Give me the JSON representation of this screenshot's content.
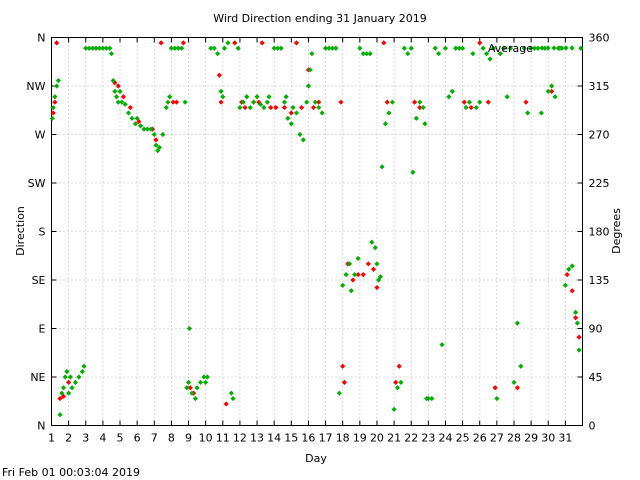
{
  "chart_data": {
    "type": "scatter",
    "title": "Wird Direction ending 31 January 2019",
    "xlabel": "Day",
    "ylabel_left": "Direction",
    "ylabel_right": "Degrees",
    "timestamp": "Fri Feb 01 00:03:04 2019",
    "xlim": [
      1,
      32
    ],
    "ylim": [
      0,
      360
    ],
    "x_ticks": [
      1,
      2,
      3,
      4,
      5,
      6,
      7,
      8,
      9,
      10,
      11,
      12,
      13,
      14,
      15,
      16,
      17,
      18,
      19,
      20,
      21,
      22,
      23,
      24,
      25,
      26,
      27,
      28,
      29,
      30,
      31
    ],
    "y_ticks_left": [
      {
        "label": "N",
        "value": 0
      },
      {
        "label": "NE",
        "value": 45
      },
      {
        "label": "E",
        "value": 90
      },
      {
        "label": "SE",
        "value": 135
      },
      {
        "label": "S",
        "value": 180
      },
      {
        "label": "SW",
        "value": 225
      },
      {
        "label": "W",
        "value": 270
      },
      {
        "label": "NW",
        "value": 315
      },
      {
        "label": "N",
        "value": 360
      }
    ],
    "y_ticks_right": [
      0,
      45,
      90,
      135,
      180,
      225,
      270,
      315,
      360
    ],
    "grid": true,
    "legend_position": "top-right",
    "colors": {
      "series_1": "#ff0000",
      "series_2": "#00b000",
      "grid": "#a0a0a0"
    },
    "series": [
      {
        "name": "",
        "marker": "diamond",
        "color": "#ff0000",
        "points": [
          [
            1.1,
            290
          ],
          [
            1.2,
            300
          ],
          [
            1.3,
            355
          ],
          [
            1.5,
            25
          ],
          [
            1.7,
            27
          ],
          [
            2.0,
            40
          ],
          [
            4.7,
            318
          ],
          [
            4.9,
            315
          ],
          [
            5.2,
            305
          ],
          [
            5.6,
            295
          ],
          [
            6.1,
            282
          ],
          [
            6.9,
            275
          ],
          [
            7.1,
            265
          ],
          [
            7.4,
            355
          ],
          [
            8.1,
            300
          ],
          [
            8.3,
            300
          ],
          [
            8.7,
            355
          ],
          [
            9.1,
            35
          ],
          [
            9.3,
            30
          ],
          [
            10.8,
            325
          ],
          [
            10.9,
            300
          ],
          [
            11.2,
            20
          ],
          [
            11.7,
            355
          ],
          [
            12.1,
            300
          ],
          [
            12.3,
            295
          ],
          [
            12.8,
            300
          ],
          [
            13.1,
            300
          ],
          [
            13.3,
            355
          ],
          [
            13.8,
            295
          ],
          [
            14.1,
            295
          ],
          [
            14.6,
            295
          ],
          [
            15.0,
            290
          ],
          [
            15.3,
            355
          ],
          [
            15.6,
            295
          ],
          [
            16.0,
            330
          ],
          [
            16.3,
            295
          ],
          [
            16.6,
            300
          ],
          [
            17.9,
            300
          ],
          [
            18.0,
            55
          ],
          [
            18.1,
            40
          ],
          [
            18.3,
            150
          ],
          [
            18.6,
            135
          ],
          [
            18.9,
            140
          ],
          [
            19.2,
            140
          ],
          [
            19.5,
            150
          ],
          [
            19.8,
            145
          ],
          [
            20.0,
            128
          ],
          [
            20.4,
            355
          ],
          [
            20.6,
            300
          ],
          [
            21.1,
            40
          ],
          [
            21.3,
            55
          ],
          [
            22.2,
            300
          ],
          [
            22.5,
            295
          ],
          [
            25.1,
            300
          ],
          [
            25.5,
            295
          ],
          [
            26.0,
            355
          ],
          [
            26.5,
            300
          ],
          [
            26.9,
            35
          ],
          [
            27.2,
            345
          ],
          [
            28.2,
            35
          ],
          [
            28.7,
            300
          ],
          [
            30.2,
            310
          ],
          [
            30.6,
            350
          ],
          [
            31.1,
            140
          ],
          [
            31.4,
            125
          ],
          [
            31.6,
            100
          ],
          [
            31.8,
            82
          ]
        ]
      },
      {
        "name": "Average",
        "marker": "diamond",
        "color": "#00b000",
        "points": [
          [
            1.05,
            285
          ],
          [
            1.1,
            295
          ],
          [
            1.2,
            305
          ],
          [
            1.3,
            315
          ],
          [
            1.4,
            320
          ],
          [
            1.5,
            10
          ],
          [
            1.6,
            30
          ],
          [
            1.7,
            35
          ],
          [
            1.8,
            45
          ],
          [
            1.9,
            50
          ],
          [
            2.0,
            30
          ],
          [
            2.1,
            45
          ],
          [
            2.2,
            35
          ],
          [
            2.4,
            40
          ],
          [
            2.6,
            45
          ],
          [
            2.8,
            50
          ],
          [
            2.9,
            55
          ],
          [
            3.0,
            350
          ],
          [
            3.2,
            350
          ],
          [
            3.4,
            350
          ],
          [
            3.6,
            350
          ],
          [
            3.8,
            350
          ],
          [
            4.0,
            350
          ],
          [
            4.2,
            350
          ],
          [
            4.4,
            350
          ],
          [
            4.5,
            345
          ],
          [
            4.6,
            320
          ],
          [
            4.7,
            310
          ],
          [
            4.8,
            305
          ],
          [
            4.9,
            300
          ],
          [
            5.0,
            310
          ],
          [
            5.1,
            300
          ],
          [
            5.3,
            298
          ],
          [
            5.5,
            290
          ],
          [
            5.7,
            285
          ],
          [
            5.9,
            280
          ],
          [
            6.0,
            285
          ],
          [
            6.2,
            278
          ],
          [
            6.4,
            275
          ],
          [
            6.6,
            275
          ],
          [
            6.8,
            275
          ],
          [
            7.0,
            270
          ],
          [
            7.1,
            260
          ],
          [
            7.2,
            255
          ],
          [
            7.3,
            258
          ],
          [
            7.5,
            270
          ],
          [
            7.7,
            295
          ],
          [
            7.8,
            300
          ],
          [
            7.9,
            305
          ],
          [
            8.0,
            350
          ],
          [
            8.2,
            350
          ],
          [
            8.4,
            350
          ],
          [
            8.6,
            350
          ],
          [
            8.8,
            300
          ],
          [
            8.9,
            35
          ],
          [
            9.0,
            40
          ],
          [
            9.05,
            90
          ],
          [
            9.2,
            30
          ],
          [
            9.4,
            25
          ],
          [
            9.5,
            35
          ],
          [
            9.7,
            40
          ],
          [
            9.9,
            45
          ],
          [
            10.0,
            40
          ],
          [
            10.1,
            45
          ],
          [
            10.3,
            350
          ],
          [
            10.5,
            350
          ],
          [
            10.7,
            345
          ],
          [
            10.9,
            310
          ],
          [
            11.0,
            305
          ],
          [
            11.1,
            350
          ],
          [
            11.3,
            355
          ],
          [
            11.5,
            30
          ],
          [
            11.6,
            25
          ],
          [
            11.9,
            350
          ],
          [
            12.0,
            295
          ],
          [
            12.2,
            300
          ],
          [
            12.4,
            305
          ],
          [
            12.6,
            295
          ],
          [
            12.8,
            300
          ],
          [
            13.0,
            305
          ],
          [
            13.2,
            298
          ],
          [
            13.4,
            295
          ],
          [
            13.6,
            300
          ],
          [
            13.7,
            305
          ],
          [
            14.0,
            350
          ],
          [
            14.2,
            350
          ],
          [
            14.4,
            350
          ],
          [
            14.6,
            300
          ],
          [
            14.7,
            305
          ],
          [
            14.8,
            285
          ],
          [
            15.0,
            280
          ],
          [
            15.1,
            295
          ],
          [
            15.3,
            290
          ],
          [
            15.5,
            270
          ],
          [
            15.7,
            265
          ],
          [
            15.9,
            300
          ],
          [
            16.0,
            315
          ],
          [
            16.1,
            330
          ],
          [
            16.2,
            345
          ],
          [
            16.4,
            300
          ],
          [
            16.6,
            295
          ],
          [
            16.8,
            290
          ],
          [
            17.0,
            350
          ],
          [
            17.2,
            350
          ],
          [
            17.4,
            350
          ],
          [
            17.6,
            350
          ],
          [
            17.8,
            30
          ],
          [
            18.0,
            130
          ],
          [
            18.2,
            140
          ],
          [
            18.4,
            150
          ],
          [
            18.5,
            125
          ],
          [
            18.7,
            140
          ],
          [
            18.9,
            155
          ],
          [
            19.0,
            350
          ],
          [
            19.2,
            345
          ],
          [
            19.4,
            345
          ],
          [
            19.6,
            345
          ],
          [
            19.7,
            170
          ],
          [
            19.9,
            165
          ],
          [
            20.0,
            150
          ],
          [
            20.1,
            135
          ],
          [
            20.2,
            138
          ],
          [
            20.3,
            240
          ],
          [
            20.5,
            280
          ],
          [
            20.7,
            290
          ],
          [
            20.9,
            300
          ],
          [
            21.0,
            15
          ],
          [
            21.2,
            35
          ],
          [
            21.4,
            40
          ],
          [
            21.6,
            350
          ],
          [
            21.8,
            345
          ],
          [
            22.0,
            350
          ],
          [
            22.1,
            235
          ],
          [
            22.3,
            285
          ],
          [
            22.5,
            300
          ],
          [
            22.7,
            295
          ],
          [
            22.8,
            280
          ],
          [
            22.9,
            25
          ],
          [
            23.0,
            25
          ],
          [
            23.2,
            25
          ],
          [
            23.4,
            350
          ],
          [
            23.6,
            345
          ],
          [
            23.8,
            75
          ],
          [
            24.0,
            350
          ],
          [
            24.2,
            305
          ],
          [
            24.4,
            310
          ],
          [
            24.6,
            350
          ],
          [
            24.8,
            350
          ],
          [
            25.0,
            350
          ],
          [
            25.2,
            295
          ],
          [
            25.4,
            300
          ],
          [
            25.6,
            345
          ],
          [
            25.8,
            295
          ],
          [
            26.0,
            300
          ],
          [
            26.2,
            350
          ],
          [
            26.4,
            345
          ],
          [
            26.6,
            340
          ],
          [
            26.8,
            350
          ],
          [
            27.0,
            25
          ],
          [
            27.2,
            345
          ],
          [
            27.4,
            350
          ],
          [
            27.6,
            305
          ],
          [
            27.8,
            350
          ],
          [
            28.0,
            40
          ],
          [
            28.2,
            95
          ],
          [
            28.4,
            55
          ],
          [
            28.6,
            350
          ],
          [
            28.8,
            290
          ],
          [
            29.0,
            350
          ],
          [
            29.2,
            350
          ],
          [
            29.4,
            350
          ],
          [
            29.6,
            290
          ],
          [
            29.8,
            350
          ],
          [
            30.0,
            310
          ],
          [
            30.2,
            315
          ],
          [
            30.4,
            305
          ],
          [
            30.6,
            350
          ],
          [
            30.8,
            350
          ],
          [
            31.0,
            130
          ],
          [
            31.2,
            145
          ],
          [
            31.4,
            148
          ],
          [
            31.6,
            105
          ],
          [
            31.7,
            95
          ],
          [
            31.8,
            70
          ],
          [
            31.9,
            350
          ]
        ]
      }
    ]
  }
}
